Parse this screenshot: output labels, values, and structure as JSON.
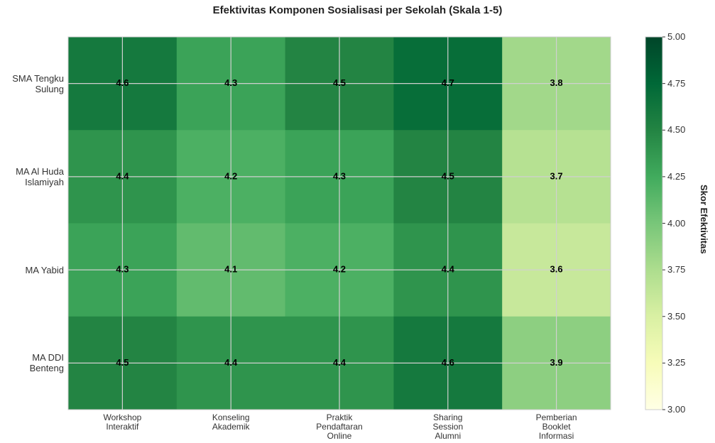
{
  "chart_data": {
    "type": "heatmap",
    "title": "Efektivitas Komponen Sosialisasi per Sekolah (Skala 1-5)",
    "x_categories": [
      "Workshop\nInteraktif",
      "Konseling\nAkademik",
      "Praktik\nPendaftaran\nOnline",
      "Sharing\nSession\nAlumni",
      "Pemberian\nBooklet\nInformasi"
    ],
    "y_categories": [
      "SMA Tengku\nSulung",
      "MA Al Huda\nIslamiyah",
      "MA Yabid",
      "MA DDI\nBenteng"
    ],
    "values": [
      [
        4.6,
        4.3,
        4.5,
        4.7,
        3.8
      ],
      [
        4.4,
        4.2,
        4.3,
        4.5,
        3.7
      ],
      [
        4.3,
        4.1,
        4.2,
        4.4,
        3.6
      ],
      [
        4.5,
        4.4,
        4.4,
        4.6,
        3.9
      ]
    ],
    "colormap": "YlGn",
    "vlim": [
      3,
      5
    ],
    "colorbar_label": "Skor Efektivitas",
    "colorbar_ticks": [
      {
        "value": 3,
        "label": "3.00"
      },
      {
        "value": 3.25,
        "label": "3.25"
      },
      {
        "value": 3.5,
        "label": "3.50"
      },
      {
        "value": 3.75,
        "label": "3.75"
      },
      {
        "value": 4,
        "label": "4.00"
      },
      {
        "value": 4.25,
        "label": "4.25"
      },
      {
        "value": 4.5,
        "label": "4.50"
      },
      {
        "value": 4.75,
        "label": "4.75"
      },
      {
        "value": 5,
        "label": "5.00"
      }
    ],
    "grid": true
  }
}
